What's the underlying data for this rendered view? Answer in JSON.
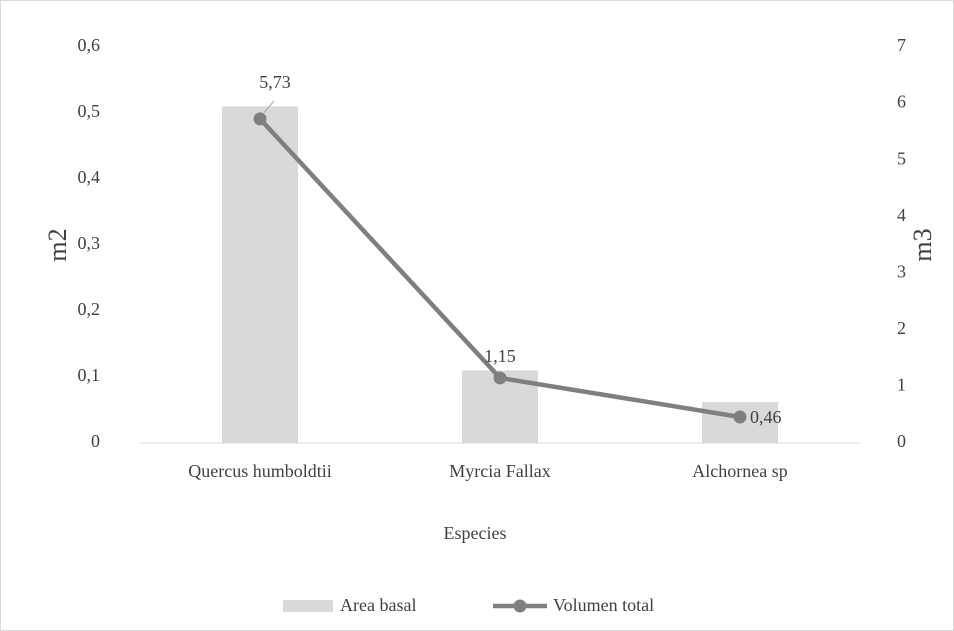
{
  "chart_data": {
    "type": "combo",
    "categories": [
      "Quercus humboldtii",
      "Myrcia Fallax",
      "Alchornea sp"
    ],
    "series": [
      {
        "name": "Area basal",
        "type": "bar",
        "color": "#d9d9d9",
        "values": [
          0.51,
          0.11,
          0.062
        ]
      },
      {
        "name": "Volumen total",
        "type": "line",
        "axis": "y2",
        "color": "#7f7f7f",
        "values": [
          5.73,
          1.15,
          0.46
        ],
        "value_labels": [
          "5,73",
          "1,15",
          "0,46"
        ]
      }
    ],
    "ylabel": "m2",
    "y2label": "m3",
    "xlabel": "Especies",
    "ylim": [
      0,
      0.6
    ],
    "yticks": [
      0,
      {
        "value": 0.1,
        "label": "0,1"
      },
      {
        "value": 0.2,
        "label": "0,2"
      },
      {
        "value": 0.3,
        "label": "0,3"
      },
      {
        "value": 0.4,
        "label": "0,4"
      },
      {
        "value": 0.5,
        "label": "0,5"
      },
      {
        "value": 0.6,
        "label": "0,6"
      }
    ],
    "y2lim": [
      0,
      7
    ],
    "y2ticks": [
      0,
      1,
      2,
      3,
      4,
      5,
      6,
      7
    ],
    "grid": false,
    "legend": "bottom"
  }
}
